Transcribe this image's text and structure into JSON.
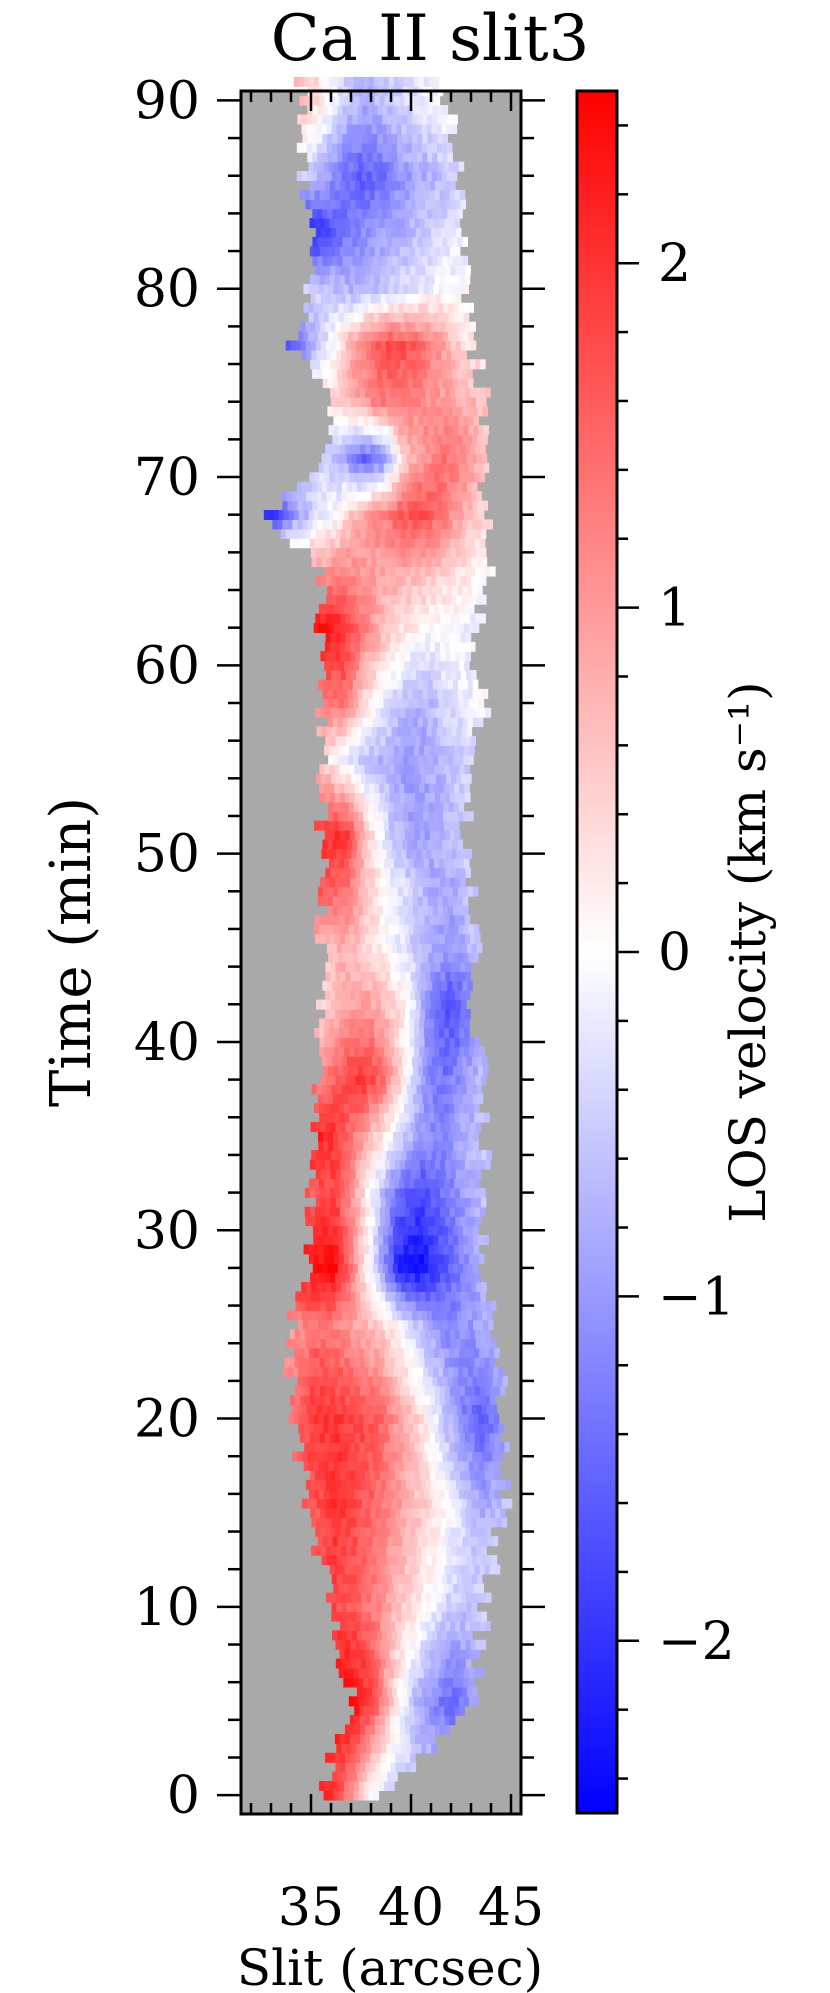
{
  "chart_data": {
    "type": "heatmap",
    "title": "Ca II slit3",
    "xlabel": "Slit   (arcsec)",
    "ylabel": "Time   (min)",
    "xlim": [
      31.5,
      45.5
    ],
    "ylim": [
      -1,
      90.5
    ],
    "x_ticks": [
      35,
      40,
      45
    ],
    "x_tick_labels": [
      "35",
      "40",
      "45"
    ],
    "y_ticks": [
      0,
      10,
      20,
      30,
      40,
      50,
      60,
      70,
      80,
      90
    ],
    "y_tick_labels": [
      "0",
      "10",
      "20",
      "30",
      "40",
      "50",
      "60",
      "70",
      "80",
      "90"
    ],
    "background_color": "#a9a9a9",
    "colorbar": {
      "label": "LOS velocity   (km s⁻¹)",
      "range": [
        -2.5,
        2.5
      ],
      "ticks": [
        2,
        1,
        0,
        -1,
        -2
      ],
      "tick_labels": [
        "2",
        "1",
        "0",
        "−1",
        "−2"
      ],
      "colors": [
        "#0000ff",
        "#ffffff",
        "#ff0000"
      ]
    },
    "profile_rows": [
      {
        "time": 0,
        "x_start": 35.5,
        "x_end": 38.5,
        "velocities": [
          2.2,
          1.5,
          0.3,
          -0.5
        ]
      },
      {
        "time": 5,
        "x_start": 37.0,
        "x_end": 43.0,
        "velocities": [
          2.4,
          1.8,
          0.4,
          -0.6,
          -1.2,
          -1.5,
          -1.0
        ]
      },
      {
        "time": 10,
        "x_start": 36.0,
        "x_end": 43.5,
        "velocities": [
          1.8,
          1.6,
          1.2,
          0.6,
          0.2,
          -0.3,
          -0.6,
          -0.4
        ]
      },
      {
        "time": 15,
        "x_start": 35.0,
        "x_end": 44.5,
        "velocities": [
          1.6,
          2.0,
          1.8,
          1.4,
          1.0,
          0.6,
          0.2,
          -0.3,
          -0.8,
          -0.6
        ]
      },
      {
        "time": 20,
        "x_start": 34.0,
        "x_end": 44.5,
        "velocities": [
          1.4,
          2.0,
          2.0,
          1.8,
          1.6,
          1.0,
          0.4,
          -0.4,
          -1.2,
          -1.6,
          -1.0
        ]
      },
      {
        "time": 25,
        "x_start": 34.0,
        "x_end": 44.0,
        "velocities": [
          1.0,
          1.4,
          1.2,
          0.8,
          0.4,
          -0.2,
          -0.8,
          -1.2,
          -1.0,
          -0.6
        ]
      },
      {
        "time": 28,
        "x_start": 35.0,
        "x_end": 43.5,
        "velocities": [
          2.4,
          2.4,
          1.0,
          -0.6,
          -2.2,
          -2.4,
          -1.8,
          -1.2,
          -0.8
        ]
      },
      {
        "time": 32,
        "x_start": 35.0,
        "x_end": 43.5,
        "velocities": [
          1.6,
          1.8,
          0.8,
          -0.4,
          -1.4,
          -1.8,
          -1.4,
          -1.0,
          -0.6
        ]
      },
      {
        "time": 35,
        "x_start": 35.0,
        "x_end": 43.5,
        "velocities": [
          2.2,
          2.0,
          1.2,
          0.4,
          -0.4,
          -1.0,
          -1.2,
          -0.8,
          -0.6
        ]
      },
      {
        "time": 38,
        "x_start": 35.5,
        "x_end": 43.5,
        "velocities": [
          1.2,
          1.8,
          2.0,
          1.4,
          0.2,
          -1.0,
          -1.4,
          -1.0,
          -0.6
        ]
      },
      {
        "time": 42,
        "x_start": 35.5,
        "x_end": 43.0,
        "velocities": [
          0.4,
          0.8,
          1.0,
          0.6,
          0.0,
          -1.2,
          -1.8,
          -1.2
        ]
      },
      {
        "time": 45,
        "x_start": 35.5,
        "x_end": 43.0,
        "velocities": [
          0.6,
          0.8,
          0.4,
          0.0,
          -0.4,
          -0.8,
          -1.0,
          -0.6
        ]
      },
      {
        "time": 48,
        "x_start": 35.5,
        "x_end": 43.0,
        "velocities": [
          1.6,
          1.4,
          0.6,
          0.0,
          -0.4,
          -0.8,
          -0.9,
          -0.5
        ]
      },
      {
        "time": 51,
        "x_start": 35.5,
        "x_end": 42.5,
        "velocities": [
          2.0,
          2.0,
          0.4,
          -0.6,
          -1.0,
          -0.8,
          -0.4
        ]
      },
      {
        "time": 55,
        "x_start": 35.5,
        "x_end": 43.0,
        "velocities": [
          0.4,
          -0.2,
          -0.6,
          -0.8,
          -1.0,
          -0.8,
          -0.6,
          -0.4
        ]
      },
      {
        "time": 58,
        "x_start": 35.5,
        "x_end": 43.5,
        "velocities": [
          1.2,
          1.4,
          0.4,
          -0.2,
          -0.6,
          -0.8,
          -0.4,
          -0.2,
          0.0
        ]
      },
      {
        "time": 62,
        "x_start": 35.5,
        "x_end": 43.0,
        "velocities": [
          2.4,
          2.0,
          1.2,
          0.6,
          0.2,
          0.0,
          0.0,
          -0.2
        ]
      },
      {
        "time": 65,
        "x_start": 35.5,
        "x_end": 44.0,
        "velocities": [
          1.0,
          1.2,
          1.0,
          0.8,
          0.8,
          0.6,
          0.4,
          0.2,
          0.0
        ]
      },
      {
        "time": 68,
        "x_start": 33.0,
        "x_end": 43.5,
        "velocities": [
          -2.0,
          -1.0,
          -0.4,
          0.0,
          0.8,
          1.2,
          1.6,
          1.8,
          1.4,
          0.8,
          0.4
        ]
      },
      {
        "time": 71,
        "x_start": 35.5,
        "x_end": 43.5,
        "velocities": [
          -0.4,
          -0.8,
          -1.6,
          -1.2,
          0.4,
          1.0,
          1.4,
          1.2,
          0.6
        ]
      },
      {
        "time": 74,
        "x_start": 36.0,
        "x_end": 43.5,
        "velocities": [
          0.4,
          0.8,
          1.2,
          1.4,
          1.2,
          1.0,
          0.8,
          0.6
        ]
      },
      {
        "time": 77,
        "x_start": 34.0,
        "x_end": 43.0,
        "velocities": [
          -1.6,
          -0.8,
          0.0,
          1.0,
          1.6,
          1.8,
          1.6,
          1.2,
          0.6,
          0.2
        ]
      },
      {
        "time": 80,
        "x_start": 35.0,
        "x_end": 42.5,
        "velocities": [
          -0.4,
          -0.6,
          -0.8,
          -0.6,
          -0.4,
          -0.2,
          0.0,
          0.0
        ]
      },
      {
        "time": 83,
        "x_start": 35.0,
        "x_end": 42.5,
        "velocities": [
          -2.2,
          -1.6,
          -1.2,
          -1.0,
          -0.8,
          -0.6,
          -0.4,
          -0.2
        ]
      },
      {
        "time": 86,
        "x_start": 34.5,
        "x_end": 42.5,
        "velocities": [
          -0.4,
          -0.8,
          -1.4,
          -1.6,
          -1.4,
          -1.0,
          -0.8,
          -0.6,
          -0.4
        ]
      },
      {
        "time": 90,
        "x_start": 34.5,
        "x_end": 41.5,
        "velocities": [
          0.6,
          0.2,
          -0.4,
          -0.8,
          -0.6,
          -0.4,
          -0.2,
          0.0
        ]
      }
    ]
  }
}
